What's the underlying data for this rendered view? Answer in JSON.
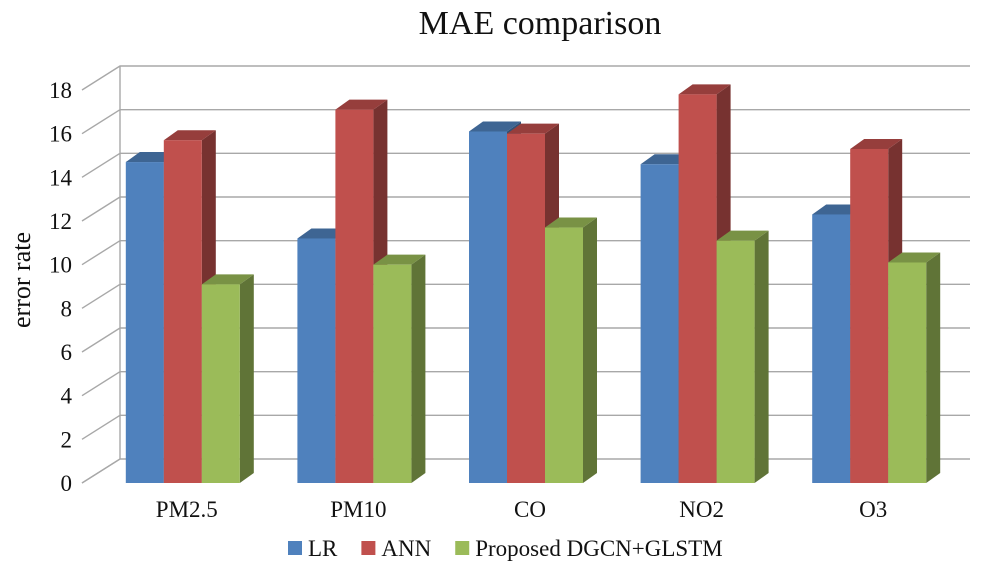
{
  "chart_data": {
    "type": "bar",
    "style": "3d-clustered-column",
    "title": "MAE comparison",
    "xlabel": "",
    "ylabel": "error rate",
    "ylim": [
      0,
      18
    ],
    "yticks": [
      0,
      2,
      4,
      6,
      8,
      10,
      12,
      14,
      16,
      18
    ],
    "grid": true,
    "legend_position": "bottom",
    "categories": [
      "PM2.5",
      "PM10",
      "CO",
      "NO2",
      "O3"
    ],
    "series": [
      {
        "name": "LR",
        "color": "#4f81bd",
        "values": [
          14.7,
          11.2,
          16.1,
          14.6,
          12.3
        ]
      },
      {
        "name": "ANN",
        "color": "#c0504d",
        "values": [
          15.7,
          17.1,
          16.0,
          17.8,
          15.3
        ]
      },
      {
        "name": "Proposed DGCN+GLSTM",
        "color": "#9bbb59",
        "values": [
          9.1,
          10.0,
          11.7,
          11.1,
          10.1
        ]
      }
    ]
  }
}
